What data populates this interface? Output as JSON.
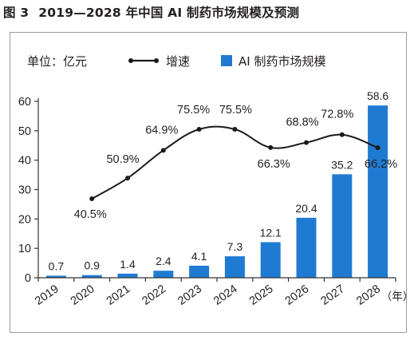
{
  "title": {
    "fig_label": "图 3",
    "text": "2019—2028 年中国 AI 制药市场规模及预测"
  },
  "unit_label": "单位：亿元",
  "colors": {
    "bar": "#1f7bd1",
    "line": "#1a1a1a",
    "axis": "#333333",
    "frame": "#9a9a9a",
    "text": "#231f20"
  },
  "chart_data": {
    "type": "bar",
    "categories": [
      "2019",
      "2020",
      "2021",
      "2022",
      "2023",
      "2024",
      "2025",
      "2026",
      "2027",
      "2028"
    ],
    "x_unit_label": "（年）",
    "ylim": [
      0,
      60
    ],
    "yticks": [
      "0",
      "10",
      "20",
      "30",
      "40",
      "50",
      "60"
    ],
    "grid": false,
    "legend_position": "top",
    "series": [
      {
        "name": "AI 制药市场规模",
        "type": "bar",
        "axis": "left",
        "values": [
          0.7,
          0.9,
          1.4,
          2.4,
          4.1,
          7.3,
          12.1,
          20.4,
          35.2,
          58.6
        ],
        "labels": [
          "0.7",
          "0.9",
          "1.4",
          "2.4",
          "4.1",
          "7.3",
          "12.1",
          "20.4",
          "35.2",
          "58.6"
        ]
      },
      {
        "name": "增速",
        "type": "line",
        "axis": "secondary",
        "x": [
          "2020",
          "2021",
          "2022",
          "2023",
          "2024",
          "2025",
          "2026",
          "2027",
          "2028"
        ],
        "values": [
          40.5,
          50.9,
          64.9,
          75.5,
          75.5,
          66.3,
          68.8,
          72.8,
          66.2
        ],
        "labels": [
          "40.5%",
          "50.9%",
          "64.9%",
          "75.5%",
          "75.5%",
          "66.3%",
          "68.8%",
          "72.8%",
          "66.2%"
        ]
      }
    ]
  }
}
